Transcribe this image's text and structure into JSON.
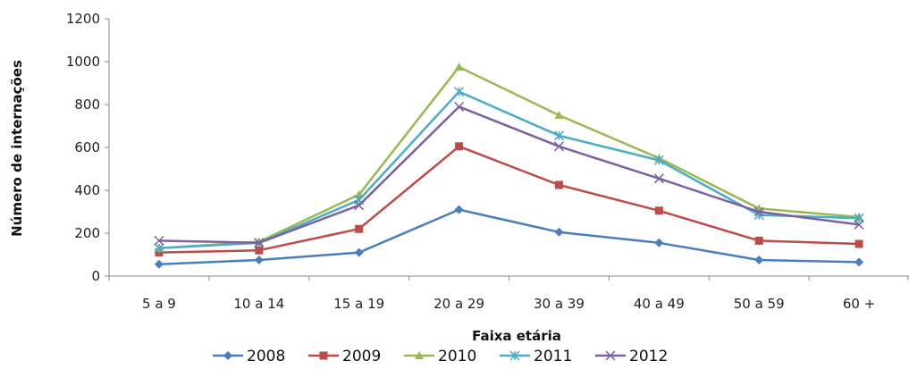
{
  "chart_data": {
    "type": "line",
    "xlabel": "Faixa etária",
    "ylabel": "Número de internações",
    "categories": [
      "5 a 9",
      "10 a 14",
      "15 a 19",
      "20 a 29",
      "30 a 39",
      "40 a 49",
      "50 a 59",
      "60 +"
    ],
    "ylim": [
      0,
      1200
    ],
    "yticks": [
      0,
      200,
      400,
      600,
      800,
      1000,
      1200
    ],
    "grid": false,
    "legend_position": "bottom",
    "series": [
      {
        "name": "2008",
        "color": "#4a7ebb",
        "marker": "diamond",
        "values": [
          55,
          75,
          110,
          310,
          205,
          155,
          75,
          65
        ]
      },
      {
        "name": "2009",
        "color": "#be4b48",
        "marker": "square",
        "values": [
          110,
          120,
          220,
          605,
          425,
          305,
          165,
          150
        ]
      },
      {
        "name": "2010",
        "color": "#98b954",
        "marker": "triangle",
        "values": [
          130,
          160,
          380,
          975,
          750,
          550,
          315,
          275
        ]
      },
      {
        "name": "2011",
        "color": "#4bacc6",
        "marker": "star",
        "values": [
          130,
          155,
          355,
          860,
          655,
          540,
          285,
          270
        ]
      },
      {
        "name": "2012",
        "color": "#7d60a0",
        "marker": "x",
        "values": [
          165,
          155,
          330,
          790,
          605,
          455,
          300,
          240
        ]
      }
    ]
  }
}
